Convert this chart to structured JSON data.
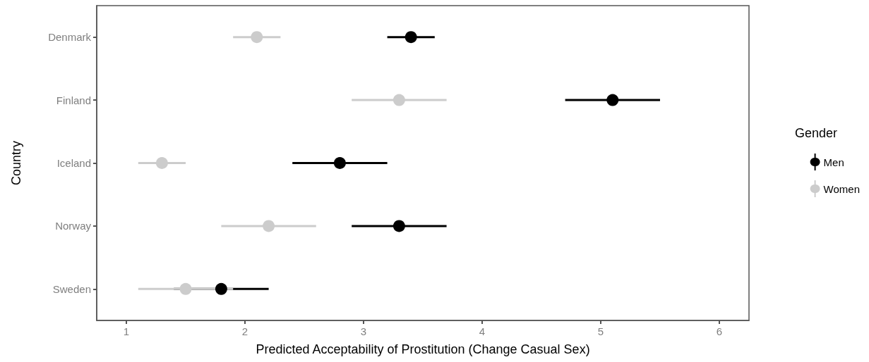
{
  "chart_data": {
    "type": "scatter",
    "orientation": "horizontal",
    "xlabel": "Predicted Acceptability of Prostitution (Change Casual Sex)",
    "ylabel": "Country",
    "legend_title": "Gender",
    "legend": "right",
    "grid": false,
    "marker": "circle",
    "categories": [
      "Denmark",
      "Finland",
      "Iceland",
      "Norway",
      "Sweden"
    ],
    "xlim": [
      0.75,
      6.25
    ],
    "xticks": [
      1,
      2,
      3,
      4,
      5,
      6
    ],
    "series": [
      {
        "name": "Men",
        "color": "#000000",
        "values": [
          3.4,
          5.1,
          2.8,
          3.3,
          1.8
        ],
        "errors": [
          0.2,
          0.4,
          0.4,
          0.4,
          0.4
        ]
      },
      {
        "name": "Women",
        "color": "#cccccc",
        "values": [
          2.1,
          3.3,
          1.3,
          2.2,
          1.5
        ],
        "errors": [
          0.2,
          0.4,
          0.2,
          0.4,
          0.4
        ]
      }
    ]
  }
}
